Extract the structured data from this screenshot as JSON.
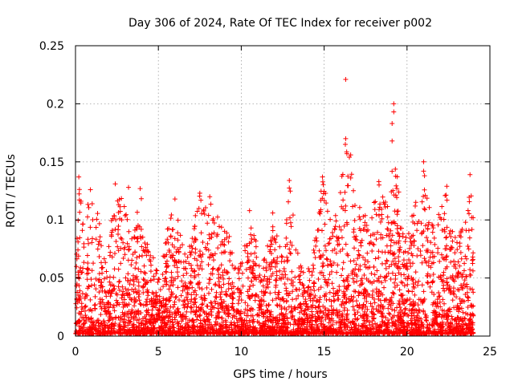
{
  "chart_data": {
    "type": "scatter",
    "title": "Day 306 of 2024, Rate Of TEC Index for receiver p002",
    "xlabel": "GPS time / hours",
    "ylabel": "ROTI / TECUs",
    "xlim": [
      0,
      25
    ],
    "ylim": [
      0,
      0.25
    ],
    "xticks": [
      0,
      5,
      10,
      15,
      20,
      25
    ],
    "yticks": [
      0,
      0.05,
      0.1,
      0.15,
      0.2,
      0.25
    ],
    "xtick_labels": [
      "0",
      "5",
      "10",
      "15",
      "20",
      "25"
    ],
    "ytick_labels": [
      "0",
      "0.05",
      "0.1",
      "0.15",
      "0.2",
      "0.25"
    ],
    "grid": true,
    "marker": "plus",
    "color": "#ff0000",
    "data_coverage_hours": [
      0,
      24
    ],
    "notable_points": [
      {
        "x": 16.3,
        "y": 0.221
      },
      {
        "x": 19.2,
        "y": 0.2
      },
      {
        "x": 19.2,
        "y": 0.193
      },
      {
        "x": 19.1,
        "y": 0.183
      },
      {
        "x": 19.1,
        "y": 0.168
      },
      {
        "x": 16.3,
        "y": 0.17
      },
      {
        "x": 16.6,
        "y": 0.156
      },
      {
        "x": 21.0,
        "y": 0.15
      },
      {
        "x": 21.0,
        "y": 0.142
      },
      {
        "x": 23.8,
        "y": 0.139
      },
      {
        "x": 0.2,
        "y": 0.137
      },
      {
        "x": 14.9,
        "y": 0.137
      },
      {
        "x": 2.4,
        "y": 0.131
      },
      {
        "x": 12.9,
        "y": 0.134
      },
      {
        "x": 3.2,
        "y": 0.128
      },
      {
        "x": 0.9,
        "y": 0.126
      },
      {
        "x": 3.9,
        "y": 0.127
      },
      {
        "x": 22.4,
        "y": 0.129
      },
      {
        "x": 18.3,
        "y": 0.133
      },
      {
        "x": 7.5,
        "y": 0.123
      },
      {
        "x": 8.1,
        "y": 0.12
      },
      {
        "x": 6.0,
        "y": 0.118
      },
      {
        "x": 10.5,
        "y": 0.108
      },
      {
        "x": 11.9,
        "y": 0.106
      },
      {
        "x": 20.4,
        "y": 0.104
      },
      {
        "x": 23.9,
        "y": 0.102
      }
    ],
    "envelope": [
      {
        "x": 0.0,
        "y": 0.085
      },
      {
        "x": 0.25,
        "y": 0.13
      },
      {
        "x": 0.5,
        "y": 0.09
      },
      {
        "x": 0.9,
        "y": 0.125
      },
      {
        "x": 1.3,
        "y": 0.11
      },
      {
        "x": 1.8,
        "y": 0.065
      },
      {
        "x": 2.5,
        "y": 0.13
      },
      {
        "x": 3.0,
        "y": 0.11
      },
      {
        "x": 3.5,
        "y": 0.08
      },
      {
        "x": 3.9,
        "y": 0.125
      },
      {
        "x": 4.5,
        "y": 0.07
      },
      {
        "x": 5.2,
        "y": 0.06
      },
      {
        "x": 5.6,
        "y": 0.1
      },
      {
        "x": 6.0,
        "y": 0.115
      },
      {
        "x": 6.7,
        "y": 0.065
      },
      {
        "x": 7.5,
        "y": 0.12
      },
      {
        "x": 8.1,
        "y": 0.115
      },
      {
        "x": 8.8,
        "y": 0.095
      },
      {
        "x": 9.4,
        "y": 0.085
      },
      {
        "x": 10.0,
        "y": 0.06
      },
      {
        "x": 10.5,
        "y": 0.105
      },
      {
        "x": 11.2,
        "y": 0.06
      },
      {
        "x": 11.9,
        "y": 0.1
      },
      {
        "x": 12.5,
        "y": 0.065
      },
      {
        "x": 12.9,
        "y": 0.13
      },
      {
        "x": 13.5,
        "y": 0.06
      },
      {
        "x": 14.2,
        "y": 0.055
      },
      {
        "x": 14.9,
        "y": 0.135
      },
      {
        "x": 15.5,
        "y": 0.09
      },
      {
        "x": 16.3,
        "y": 0.17
      },
      {
        "x": 16.6,
        "y": 0.15
      },
      {
        "x": 17.2,
        "y": 0.11
      },
      {
        "x": 17.8,
        "y": 0.1
      },
      {
        "x": 18.3,
        "y": 0.13
      },
      {
        "x": 18.8,
        "y": 0.11
      },
      {
        "x": 19.2,
        "y": 0.165
      },
      {
        "x": 19.8,
        "y": 0.09
      },
      {
        "x": 20.4,
        "y": 0.105
      },
      {
        "x": 21.0,
        "y": 0.145
      },
      {
        "x": 21.6,
        "y": 0.09
      },
      {
        "x": 22.4,
        "y": 0.125
      },
      {
        "x": 23.0,
        "y": 0.08
      },
      {
        "x": 23.6,
        "y": 0.1
      },
      {
        "x": 23.9,
        "y": 0.135
      },
      {
        "x": 24.1,
        "y": 0.09
      }
    ]
  }
}
